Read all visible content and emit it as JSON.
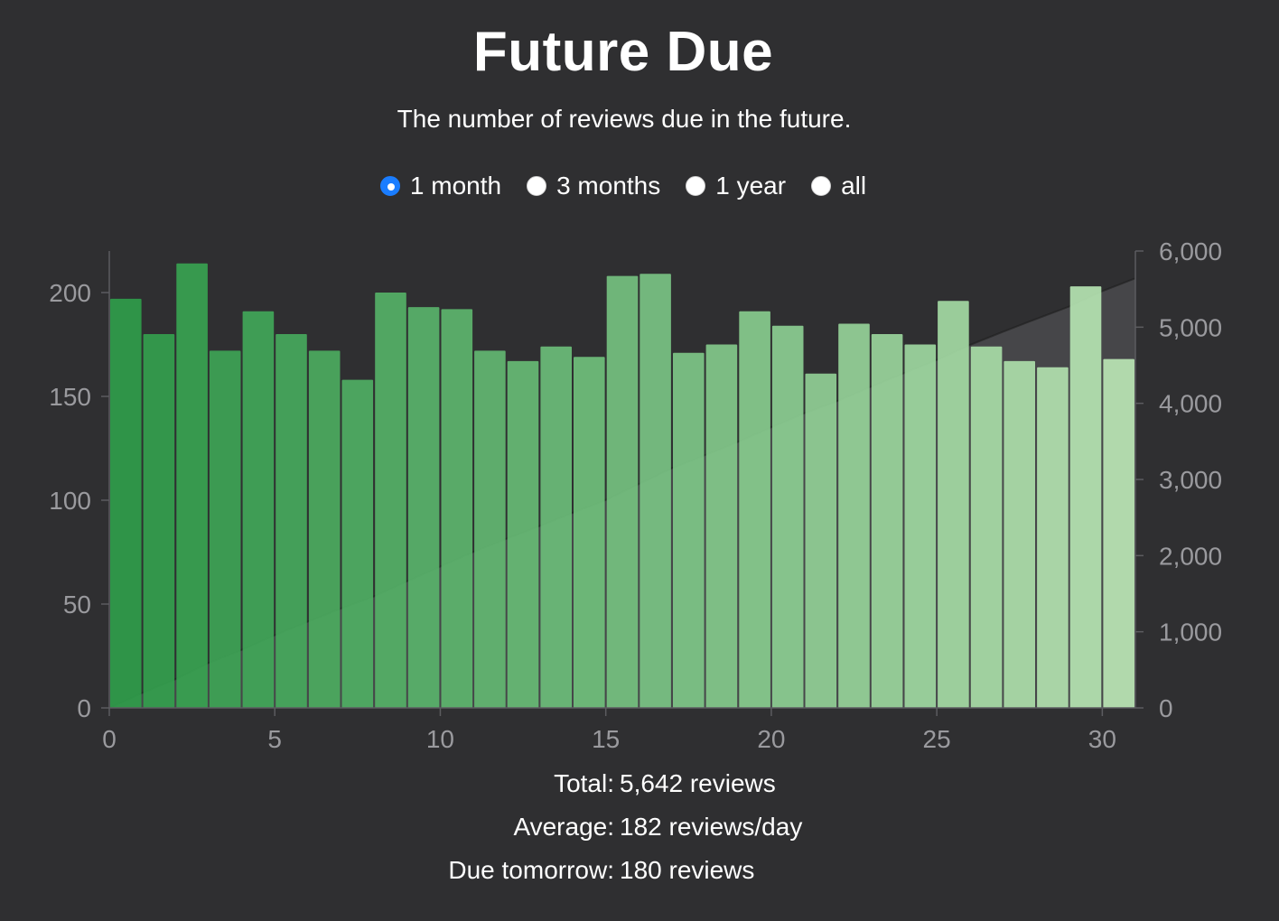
{
  "header": {
    "title": "Future Due",
    "subtitle": "The number of reviews due in the future."
  },
  "ranges": [
    {
      "label": "1 month",
      "checked": true
    },
    {
      "label": "3 months",
      "checked": false
    },
    {
      "label": "1 year",
      "checked": false
    },
    {
      "label": "all",
      "checked": false
    }
  ],
  "stats": [
    {
      "label": "Total:",
      "value": "5,642 reviews"
    },
    {
      "label": "Average:",
      "value": "182 reviews/day"
    },
    {
      "label": "Due tomorrow:",
      "value": "180 reviews"
    }
  ],
  "colors": {
    "background": "#2f2f31",
    "bar_start": "#2f9c4a",
    "bar_end": "#b9e4b4",
    "cumulative_fill": "#5a5a5c",
    "radio_checked": "#1a7dff"
  },
  "chart_data": {
    "type": "bar",
    "x": [
      0,
      1,
      2,
      3,
      4,
      5,
      6,
      7,
      8,
      9,
      10,
      11,
      12,
      13,
      14,
      15,
      16,
      17,
      18,
      19,
      20,
      21,
      22,
      23,
      24,
      25,
      26,
      27,
      28,
      29,
      30
    ],
    "values": [
      197,
      180,
      214,
      172,
      191,
      180,
      172,
      158,
      200,
      193,
      192,
      172,
      167,
      174,
      169,
      208,
      209,
      171,
      175,
      191,
      184,
      161,
      185,
      180,
      175,
      196,
      174,
      167,
      164,
      203,
      168
    ],
    "xlim": [
      0,
      31
    ],
    "ylim": [
      0,
      220
    ],
    "xticks": [
      0,
      5,
      10,
      15,
      20,
      25,
      30
    ],
    "yticks": [
      0,
      50,
      100,
      150,
      200
    ],
    "y2lim": [
      0,
      6000
    ],
    "y2ticks": [
      0,
      1000,
      2000,
      3000,
      4000,
      5000,
      6000
    ],
    "cumulative_series": "running total of values, right axis",
    "grid": false,
    "legend": "none"
  }
}
